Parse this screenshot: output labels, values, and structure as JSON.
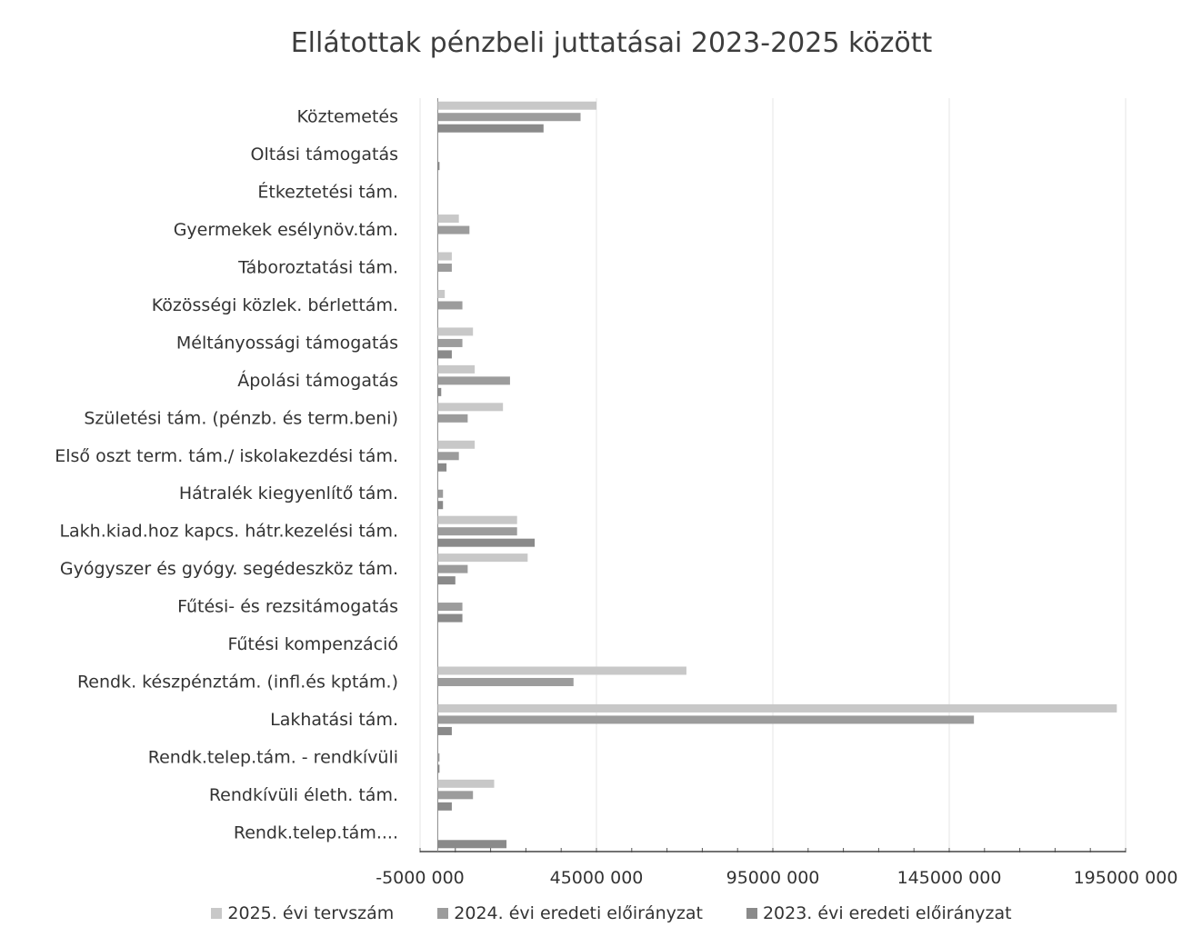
{
  "chart_data": {
    "type": "bar",
    "orientation": "horizontal",
    "title": "Ellátottak pénzbeli juttatásai 2023-2025 között",
    "categories": [
      "Köztemetés",
      "Oltási támogatás",
      "Étkeztetési tám.",
      "Gyermekek esélynöv.tám.",
      "Táboroztatási tám.",
      "Közösségi közlek. bérlettám.",
      "Méltányossági támogatás",
      "Ápolási támogatás",
      "Születési tám. (pénzb. és term.beni)",
      "Első oszt term. tám./ iskolakezdési tám.",
      "Hátralék kiegyenlítő tám.",
      "Lakh.kiad.hoz kapcs. hátr.kezelési tám.",
      "Gyógyszer és gyógy. segédeszköz tám.",
      "Fűtési- és rezsitámogatás",
      "Fűtési kompenzáció",
      "Rendk. készpénztám. (infl.és kptám.)",
      "Lakhatási tám.",
      "Rendk.telep.tám. - rendkívüli",
      "Rendkívüli életh. tám.",
      "Rendk.telep.tám...."
    ],
    "series": [
      {
        "name": "2025. évi tervszám",
        "color": "#c8c8c8",
        "values": [
          45000000,
          0,
          0,
          6000000,
          4000000,
          2000000,
          10000000,
          10500000,
          18500000,
          10500000,
          0,
          22500000,
          25500000,
          0,
          0,
          70500000,
          192500000,
          0,
          16000000,
          0
        ]
      },
      {
        "name": "2024. évi eredeti előirányzat",
        "color": "#9c9c9c",
        "values": [
          40500000,
          0,
          0,
          9000000,
          4000000,
          7000000,
          7000000,
          20500000,
          8500000,
          6000000,
          1500000,
          22500000,
          8500000,
          7000000,
          0,
          38500000,
          152000000,
          500000,
          10000000,
          0
        ]
      },
      {
        "name": "2023. évi eredeti előirányzat",
        "color": "#8a8a8a",
        "values": [
          30000000,
          500000,
          0,
          0,
          0,
          0,
          4000000,
          1000000,
          0,
          2500000,
          1500000,
          27500000,
          5000000,
          7000000,
          0,
          0,
          4000000,
          500000,
          4000000,
          19500000
        ]
      }
    ],
    "xlim": [
      -5000000,
      195000000
    ],
    "xticks": [
      -5000000,
      45000000,
      95000000,
      145000000,
      195000000
    ],
    "xtick_labels": [
      "-5000 000",
      "45000 000",
      "95000 000",
      "145000 000",
      "195000 000"
    ],
    "grid": true,
    "legend_position": "bottom"
  }
}
